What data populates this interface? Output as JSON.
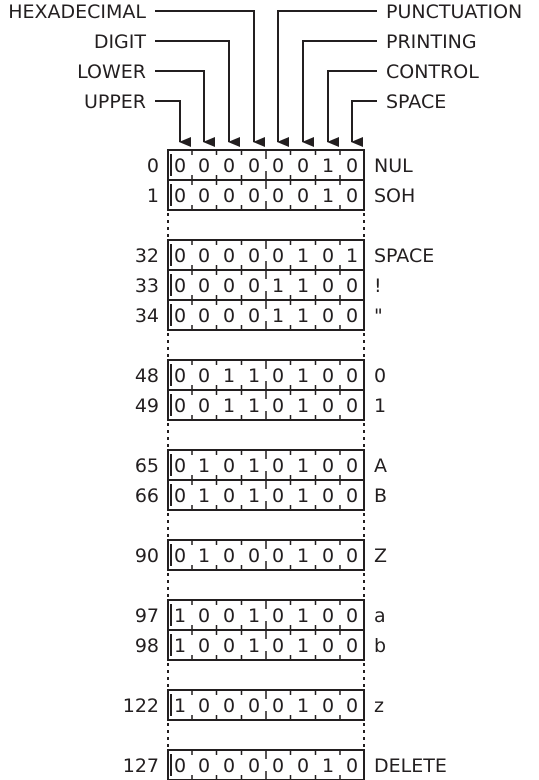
{
  "headers": [
    {
      "label": "HEXADECIMAL",
      "side": "left",
      "bit": 3
    },
    {
      "label": "DIGIT",
      "side": "left",
      "bit": 2
    },
    {
      "label": "LOWER",
      "side": "left",
      "bit": 1
    },
    {
      "label": "UPPER",
      "side": "left",
      "bit": 0
    },
    {
      "label": "PUNCTUATION",
      "side": "right",
      "bit": 4
    },
    {
      "label": "PRINTING",
      "side": "right",
      "bit": 5
    },
    {
      "label": "CONTROL",
      "side": "right",
      "bit": 6
    },
    {
      "label": "SPACE",
      "side": "right",
      "bit": 7
    }
  ],
  "groups": [
    [
      {
        "code": "0",
        "bits": "00000010",
        "name": "NUL"
      },
      {
        "code": "1",
        "bits": "00000010",
        "name": "SOH"
      }
    ],
    [
      {
        "code": "32",
        "bits": "00000101",
        "name": "SPACE"
      },
      {
        "code": "33",
        "bits": "00001100",
        "name": "!"
      },
      {
        "code": "34",
        "bits": "00001100",
        "name": "\""
      }
    ],
    [
      {
        "code": "48",
        "bits": "00110100",
        "name": "0"
      },
      {
        "code": "49",
        "bits": "00110100",
        "name": "1"
      }
    ],
    [
      {
        "code": "65",
        "bits": "01010100",
        "name": "A"
      },
      {
        "code": "66",
        "bits": "01010100",
        "name": "B"
      }
    ],
    [
      {
        "code": "90",
        "bits": "01000100",
        "name": "Z"
      }
    ],
    [
      {
        "code": "97",
        "bits": "10010100",
        "name": "a"
      },
      {
        "code": "98",
        "bits": "10010100",
        "name": "b"
      }
    ],
    [
      {
        "code": "122",
        "bits": "10000100",
        "name": "z"
      }
    ],
    [
      {
        "code": "127",
        "bits": "00000010",
        "name": "DELETE"
      }
    ]
  ]
}
